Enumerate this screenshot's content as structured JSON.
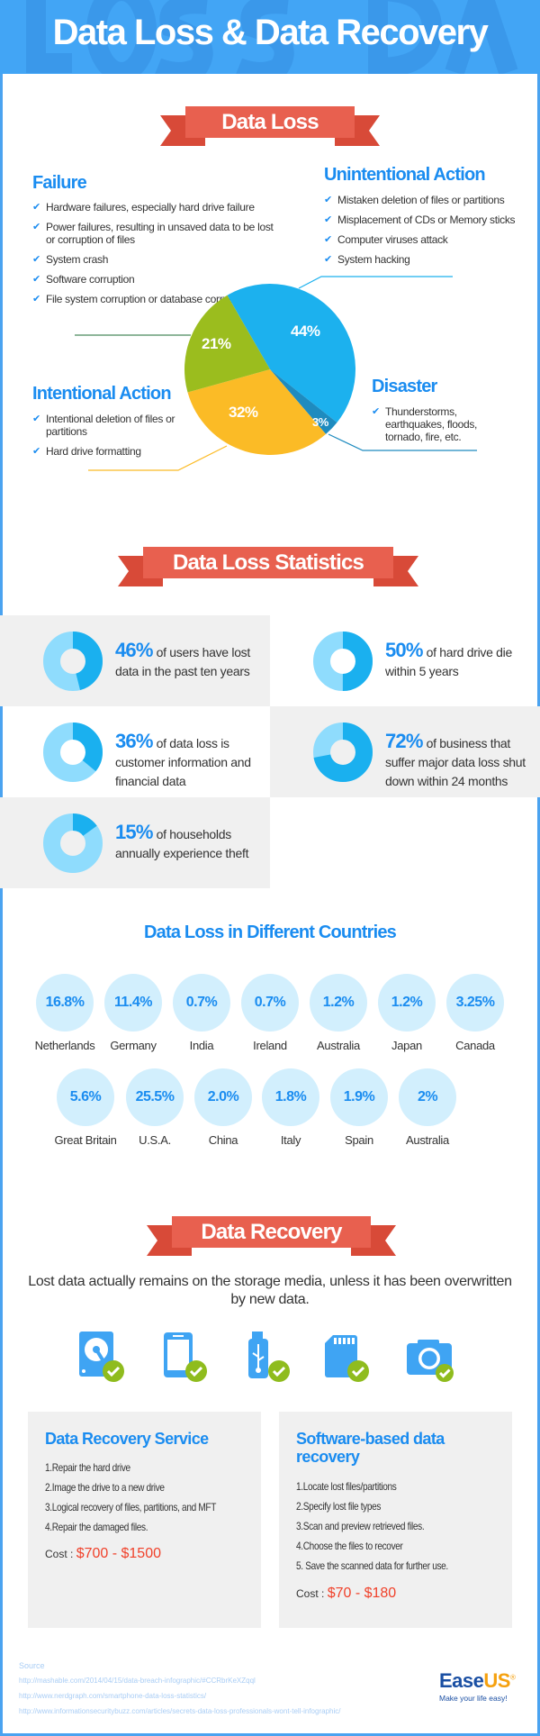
{
  "header": {
    "title": "Data Loss & Data Recovery",
    "watermark": "LOSS & DATA"
  },
  "data_loss": {
    "ribbon": "Data Loss",
    "failure": {
      "title": "Failure",
      "items": [
        "Hardware failures, especially hard drive failure",
        "Power failures, resulting in unsaved data to be lost or corruption of files",
        "System crash",
        "Software corruption",
        "File system corruption or database corruption"
      ]
    },
    "unintentional": {
      "title": "Unintentional Action",
      "items": [
        "Mistaken deletion of files or partitions",
        "Misplacement of CDs or Memory sticks",
        "Computer viruses attack",
        "System hacking"
      ]
    },
    "intentional": {
      "title": "Intentional Action",
      "items": [
        "Intentional deletion of files or partitions",
        "Hard drive formatting"
      ]
    },
    "disaster": {
      "title": "Disaster",
      "items": [
        "Thunderstorms, earthquakes, floods, tornado, fire, etc."
      ]
    },
    "check_icon": "check-icon"
  },
  "chart_data": {
    "type": "pie",
    "slices": [
      {
        "category": "Unintentional Action",
        "value": 44,
        "label": "44%",
        "color": "#1cb1ee"
      },
      {
        "category": "Disaster",
        "value": 3,
        "label": "3%",
        "color": "#1e8bbf"
      },
      {
        "category": "Intentional Action",
        "value": 32,
        "label": "32%",
        "color": "#fbbb26"
      },
      {
        "category": "Failure",
        "value": 21,
        "label": "21%",
        "color": "#9bbd1e"
      }
    ]
  },
  "statistics": {
    "ribbon": "Data Loss Statistics",
    "items": [
      {
        "pct": "46%",
        "value": 46,
        "text": "of users have lost data in the past ten years"
      },
      {
        "pct": "50%",
        "value": 50,
        "text": "of hard drive die within 5 years"
      },
      {
        "pct": "36%",
        "value": 36,
        "text": "of data loss is customer information and financial data"
      },
      {
        "pct": "72%",
        "value": 72,
        "text": "of business that suffer major data loss shut down within 24 months"
      },
      {
        "pct": "15%",
        "value": 15,
        "text": "of households annually experience theft"
      }
    ]
  },
  "countries": {
    "title": "Data Loss in Different Countries",
    "row1": [
      {
        "value": "16.8%",
        "name": "Netherlands"
      },
      {
        "value": "11.4%",
        "name": "Germany"
      },
      {
        "value": "0.7%",
        "name": "India"
      },
      {
        "value": "0.7%",
        "name": "Ireland"
      },
      {
        "value": "1.2%",
        "name": "Australia"
      },
      {
        "value": "1.2%",
        "name": "Japan"
      },
      {
        "value": "3.25%",
        "name": "Canada"
      }
    ],
    "row2": [
      {
        "value": "5.6%",
        "name": "Great Britain"
      },
      {
        "value": "25.5%",
        "name": "U.S.A."
      },
      {
        "value": "2.0%",
        "name": "China"
      },
      {
        "value": "1.8%",
        "name": "Italy"
      },
      {
        "value": "1.9%",
        "name": "Spain"
      },
      {
        "value": "2%",
        "name": "Australia"
      }
    ]
  },
  "recovery": {
    "ribbon": "Data Recovery",
    "intro": "Lost data actually remains on the storage media, unless it has been overwritten by new data.",
    "icons": [
      "hard-drive-icon",
      "smartphone-icon",
      "usb-drive-icon",
      "sd-card-icon",
      "camera-icon"
    ],
    "service": {
      "title": "Data Recovery Service",
      "steps": [
        "1.Repair the hard drive",
        "2.Image the drive to a new drive",
        "3.Logical recovery of files, partitions, and MFT",
        "4.Repair the damaged files."
      ],
      "cost_label": "Cost :",
      "cost": "$700 - $1500"
    },
    "software": {
      "title": "Software-based data recovery",
      "steps": [
        "1.Locate lost files/partitions",
        "2.Specify lost file types",
        "3.Scan and preview retrieved files.",
        "4.Choose the files to recover",
        "5. Save the scanned data for further use."
      ],
      "cost_label": "Cost :",
      "cost": "$70 - $180"
    }
  },
  "footer": {
    "source_label": "Source",
    "sources": [
      "http://mashable.com/2014/04/15/data-breach-infographic/#CCRbrKeXZqql",
      "http://www.nerdgraph.com/smartphone-data-loss-statistics/",
      "http://www.informationsecuritybuzz.com/articles/secrets-data-loss-professionals-wont-tell-infographic/"
    ],
    "logo_ease": "Ease",
    "logo_us": "US",
    "logo_reg": "®",
    "tagline": "Make your life easy!"
  },
  "colors": {
    "brand_blue": "#42a5f5",
    "heading_blue": "#1a8cf0",
    "ribbon_red": "#e8604f",
    "cost_red": "#f0412a",
    "check_green": "#8fbc1e"
  }
}
